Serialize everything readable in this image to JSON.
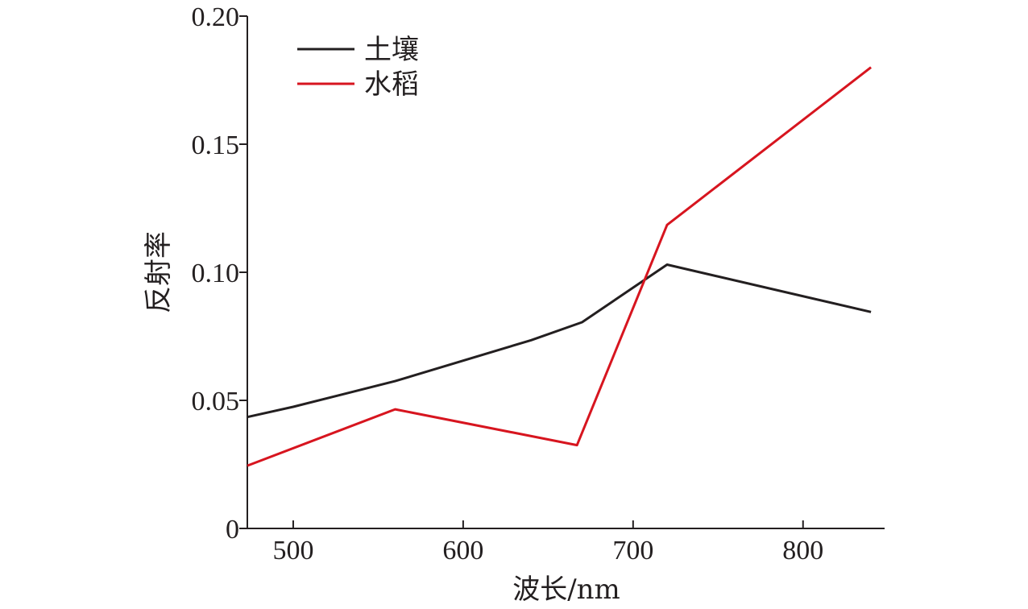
{
  "chart_data": {
    "type": "line",
    "title": "",
    "xlabel": "波长/nm",
    "ylabel": "反射率",
    "xlim": [
      473,
      848
    ],
    "ylim": [
      0,
      0.2
    ],
    "xticks": [
      500,
      600,
      700,
      800
    ],
    "xtick_labels": [
      "500",
      "600",
      "700",
      "800"
    ],
    "yticks": [
      0,
      0.05,
      0.1,
      0.15,
      0.2
    ],
    "ytick_labels": [
      "0",
      "0.05",
      "0.10",
      "0.15",
      "0.20"
    ],
    "grid": false,
    "legend_position": "top-left",
    "series": [
      {
        "name": "土壤",
        "color": "#231f20",
        "x": [
          473,
          500,
          530,
          560,
          600,
          640,
          670,
          720,
          840
        ],
        "y": [
          0.0435,
          0.0475,
          0.0525,
          0.0575,
          0.0655,
          0.0735,
          0.0805,
          0.103,
          0.0845
        ]
      },
      {
        "name": "水稻",
        "color": "#d7151f",
        "x": [
          473,
          560,
          667,
          720,
          840
        ],
        "y": [
          0.0245,
          0.0465,
          0.0325,
          0.1185,
          0.18
        ]
      }
    ]
  }
}
